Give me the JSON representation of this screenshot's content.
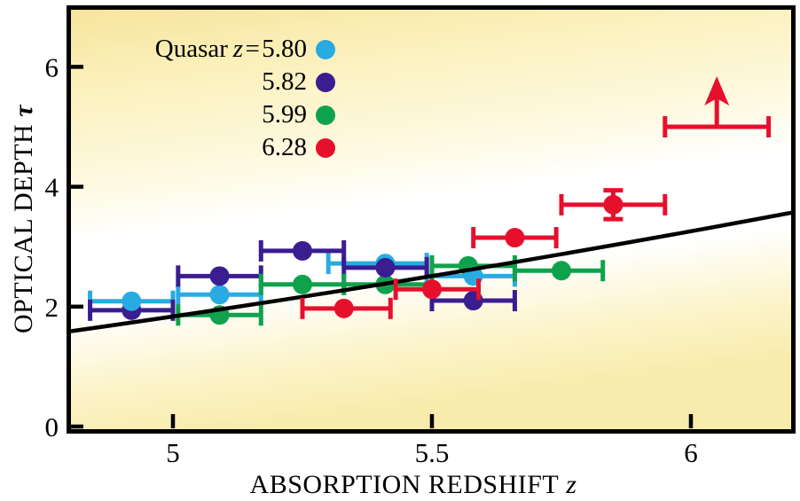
{
  "figure_title": "",
  "axes": {
    "x": {
      "label_caps": "ABSORPTION REDSHIFT",
      "label_var": "z",
      "ticks": [
        {
          "value": 5,
          "label": "5"
        },
        {
          "value": 5.5,
          "label": "5.5"
        },
        {
          "value": 6,
          "label": "6"
        }
      ]
    },
    "y": {
      "label_caps": "OPTICAL DEPTH",
      "label_var": "τ",
      "ticks": [
        {
          "value": 0,
          "label": "0"
        },
        {
          "value": 2,
          "label": "2"
        },
        {
          "value": 4,
          "label": "4"
        },
        {
          "value": 6,
          "label": "6"
        }
      ]
    }
  },
  "legend": {
    "prefix_text": "Quasar",
    "var_symbol": "z",
    "equals": "=",
    "items": [
      {
        "value": "5.80",
        "color": "#29ABE2"
      },
      {
        "value": "5.82",
        "color": "#3A1D90"
      },
      {
        "value": "5.99",
        "color": "#0FA24C"
      },
      {
        "value": "6.28",
        "color": "#E6102C"
      }
    ]
  },
  "chart_data": {
    "type": "scatter",
    "title": "",
    "xlabel": "ABSORPTION REDSHIFT z",
    "ylabel": "OPTICAL DEPTH τ",
    "xlim": [
      4.8,
      6.2
    ],
    "ylim": [
      0,
      7.0
    ],
    "grid": false,
    "legend_position": "top-left",
    "series": [
      {
        "name": "Quasar z=5.80",
        "color": "#29ABE2",
        "points": [
          {
            "z": 4.92,
            "z_lo": 4.84,
            "z_hi": 5.0,
            "tau": 2.09
          },
          {
            "z": 5.09,
            "z_lo": 5.01,
            "z_hi": 5.17,
            "tau": 2.2
          },
          {
            "z": 5.41,
            "z_lo": 5.3,
            "z_hi": 5.49,
            "tau": 2.72
          },
          {
            "z": 5.58,
            "z_lo": 5.49,
            "z_hi": 5.66,
            "tau": 2.51
          }
        ]
      },
      {
        "name": "Quasar z=5.82",
        "color": "#3A1D90",
        "points": [
          {
            "z": 4.92,
            "z_lo": 4.84,
            "z_hi": 5.0,
            "tau": 1.94
          },
          {
            "z": 5.09,
            "z_lo": 5.01,
            "z_hi": 5.17,
            "tau": 2.51
          },
          {
            "z": 5.25,
            "z_lo": 5.17,
            "z_hi": 5.33,
            "tau": 2.93
          },
          {
            "z": 5.41,
            "z_lo": 5.33,
            "z_hi": 5.49,
            "tau": 2.65
          },
          {
            "z": 5.58,
            "z_lo": 5.5,
            "z_hi": 5.66,
            "tau": 2.1
          }
        ]
      },
      {
        "name": "Quasar z=5.99",
        "color": "#0FA24C",
        "points": [
          {
            "z": 5.09,
            "z_lo": 5.01,
            "z_hi": 5.17,
            "tau": 1.86
          },
          {
            "z": 5.25,
            "z_lo": 5.17,
            "z_hi": 5.33,
            "tau": 2.37
          },
          {
            "z": 5.41,
            "z_lo": 5.33,
            "z_hi": 5.5,
            "tau": 2.37
          },
          {
            "z": 5.57,
            "z_lo": 5.5,
            "z_hi": 5.66,
            "tau": 2.68
          },
          {
            "z": 5.75,
            "z_lo": 5.66,
            "z_hi": 5.83,
            "tau": 2.6
          }
        ]
      },
      {
        "name": "Quasar z=6.28",
        "color": "#E6102C",
        "points": [
          {
            "z": 5.33,
            "z_lo": 5.25,
            "z_hi": 5.42,
            "tau": 1.97
          },
          {
            "z": 5.5,
            "z_lo": 5.43,
            "z_hi": 5.59,
            "tau": 2.29
          },
          {
            "z": 5.66,
            "z_lo": 5.58,
            "z_hi": 5.74,
            "tau": 3.15
          },
          {
            "z": 5.85,
            "z_lo": 5.75,
            "z_hi": 5.95,
            "tau": 3.7,
            "tau_err": 0.24
          },
          {
            "z": 6.05,
            "z_lo": 5.95,
            "z_hi": 6.15,
            "tau": 5.0,
            "lower_limit": true
          }
        ]
      }
    ],
    "trend_line": {
      "description": "model curve",
      "color": "#000000",
      "start": {
        "z": 4.803,
        "tau": 1.59
      },
      "control": {
        "z": 5.5,
        "tau": 2.44
      },
      "end": {
        "z": 6.196,
        "tau": 3.57
      }
    },
    "background": {
      "direction": {
        "x1": 0,
        "y1": 0,
        "x2": 0.22,
        "y2": 1
      },
      "stops": [
        {
          "offset": 0.0,
          "color": "#F7E49C"
        },
        {
          "offset": 0.17,
          "color": "#FBF0BA"
        },
        {
          "offset": 0.42,
          "color": "#FEFAE4"
        },
        {
          "offset": 0.53,
          "color": "#FFFFFF"
        },
        {
          "offset": 0.7,
          "color": "#FFFFFF"
        },
        {
          "offset": 0.86,
          "color": "#FCF4CC"
        },
        {
          "offset": 1.0,
          "color": "#F8ECAC"
        }
      ]
    }
  }
}
